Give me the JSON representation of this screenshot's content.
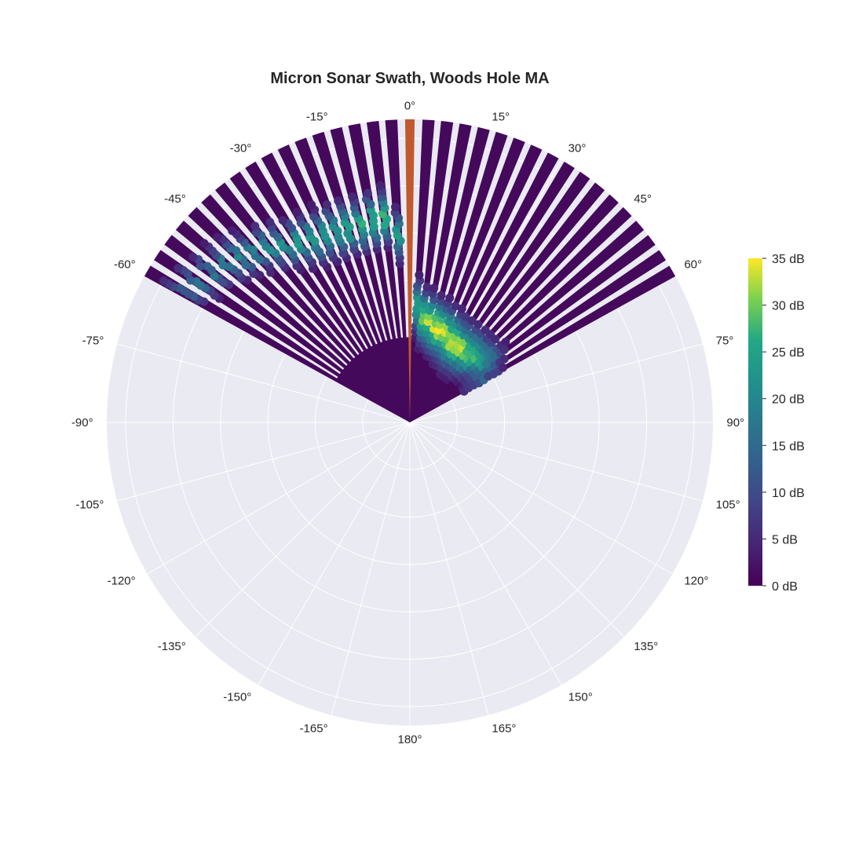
{
  "chart_data": {
    "type": "polar-scatter",
    "title": "Micron Sonar Swath, Woods Hole MA",
    "angular_axis": {
      "direction": "clockwise",
      "zero_at": "top",
      "tick_values_deg": [
        0,
        15,
        30,
        45,
        60,
        75,
        90,
        105,
        120,
        135,
        150,
        165,
        180,
        -165,
        -150,
        -135,
        -120,
        -105,
        -90,
        -75,
        -60,
        -45,
        -30,
        -15
      ],
      "tick_labels": [
        "0°",
        "15°",
        "30°",
        "45°",
        "60°",
        "75°",
        "90°",
        "105°",
        "120°",
        "135°",
        "150°",
        "165°",
        "180°",
        "-165°",
        "-150°",
        "-135°",
        "-120°",
        "-105°",
        "-90°",
        "-75°",
        "-60°",
        "-45°",
        "-30°",
        "-15°"
      ]
    },
    "radial_axis": {
      "range": [
        0,
        32
      ],
      "tick_values": [
        0,
        5,
        10,
        15,
        20,
        25,
        30
      ],
      "show_tick_labels": false
    },
    "grid": true,
    "background_color": "#eaeaf2",
    "colorscale": "Viridis",
    "colorbar": {
      "range": [
        0,
        35
      ],
      "tick_values": [
        0,
        5,
        10,
        15,
        20,
        25,
        30,
        35
      ],
      "tick_labels": [
        "0 dB",
        "5 dB",
        "10 dB",
        "15 dB",
        "20 dB",
        "25 dB",
        "30 dB",
        "35 dB"
      ]
    },
    "swath": {
      "beam_angle_start_deg": -60,
      "beam_angle_end_deg": 60,
      "beam_count": 35,
      "beam_step_deg": 3.53,
      "range_max": 32,
      "range_resolution": 0.6,
      "base_intensity_db": 1,
      "highlighted_beam_angle_deg": 0,
      "highlighted_beam_color": "#c1592f"
    },
    "seabed_profile": [
      {
        "angle_deg": -60,
        "range": 27.5,
        "peak_db": 14
      },
      {
        "angle_deg": -45,
        "range": 25.0,
        "peak_db": 18
      },
      {
        "angle_deg": -30,
        "range": 22.0,
        "peak_db": 22
      },
      {
        "angle_deg": -15,
        "range": 21.5,
        "peak_db": 26
      },
      {
        "angle_deg": -5,
        "range": 22.0,
        "peak_db": 28
      },
      {
        "angle_deg": 0,
        "range": 14.5,
        "peak_db": 10
      },
      {
        "angle_deg": 5,
        "range": 11.5,
        "peak_db": 30
      },
      {
        "angle_deg": 15,
        "range": 10.5,
        "peak_db": 33
      },
      {
        "angle_deg": 30,
        "range": 9.5,
        "peak_db": 32
      },
      {
        "angle_deg": 45,
        "range": 9.5,
        "peak_db": 28
      },
      {
        "angle_deg": 52,
        "range": 10.0,
        "peak_db": 22
      },
      {
        "angle_deg": 60,
        "range": 9.0,
        "peak_db": 12
      }
    ]
  }
}
